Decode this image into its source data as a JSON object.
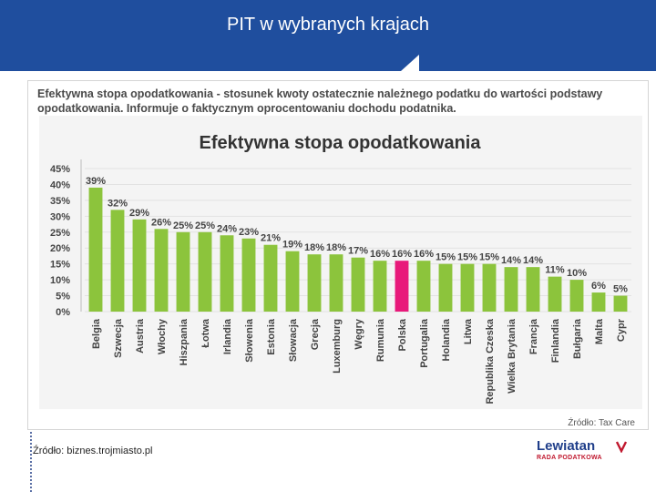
{
  "slide": {
    "title": "PIT w wybranych krajach",
    "source": "Źródło: biznes.trojmiasto.pl"
  },
  "figure": {
    "description": "Efektywna stopa opodatkowania - stosunek kwoty ostatecznie należnego podatku do wartości podstawy opodatkowania. Informuje o faktycznym oprocentowaniu dochodu podatnika.",
    "source": "Źródło: Tax Care"
  },
  "logo": {
    "name": "Lewiatan",
    "subtitle": "RADA PODATKOWA"
  },
  "colors": {
    "header": "#1f4e9e",
    "bar": "#8cc43c",
    "highlight": "#e8197a",
    "label": "#444444"
  },
  "chart_data": {
    "type": "bar",
    "title": "Efektywna stopa opodatkowania",
    "xlabel": "",
    "ylabel": "",
    "ylim": [
      0,
      45
    ],
    "ytick_labels": [
      "0%",
      "5%",
      "10%",
      "15%",
      "20%",
      "25%",
      "30%",
      "35%",
      "40%",
      "45%"
    ],
    "grid": true,
    "categories": [
      "Belgia",
      "Szwecja",
      "Austria",
      "Włochy",
      "Hiszpania",
      "Łotwa",
      "Irlandia",
      "Słowenia",
      "Estonia",
      "Słowacja",
      "Grecja",
      "Luxemburg",
      "Węgry",
      "Rumunia",
      "Polska",
      "Portugalia",
      "Holandia",
      "Litwa",
      "Republika Czeska",
      "Wielka Brytania",
      "Francja",
      "Finlandia",
      "Bułgaria",
      "Malta",
      "Cypr"
    ],
    "values": [
      39,
      32,
      29,
      26,
      25,
      25,
      24,
      23,
      21,
      19,
      18,
      18,
      17,
      16,
      16,
      16,
      15,
      15,
      15,
      14,
      14,
      11,
      10,
      6,
      5
    ],
    "value_labels": [
      "39%",
      "32%",
      "29%",
      "26%",
      "25%",
      "25%",
      "24%",
      "23%",
      "21%",
      "19%",
      "18%",
      "18%",
      "17%",
      "16%",
      "16%",
      "16%",
      "15%",
      "15%",
      "15%",
      "14%",
      "14%",
      "11%",
      "10%",
      "6%",
      "5%"
    ],
    "highlight_category": "Polska"
  }
}
